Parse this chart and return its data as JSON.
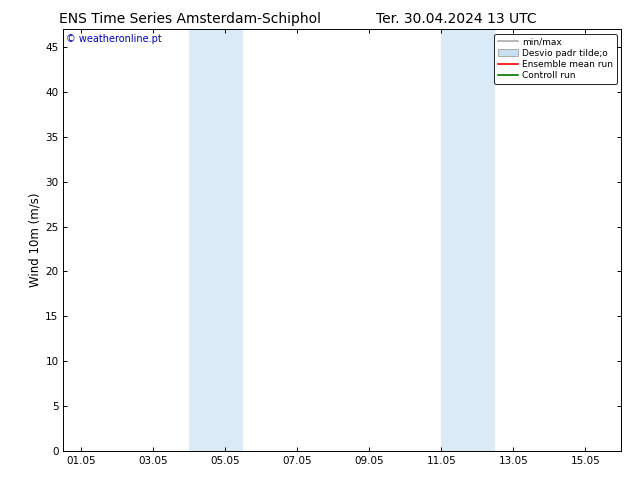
{
  "title_left": "ENS Time Series Amsterdam-Schiphol",
  "title_right": "Ter. 30.04.2024 13 UTC",
  "ylabel": "Wind 10m (m/s)",
  "watermark": "© weatheronline.pt",
  "watermark_color": "#0000bb",
  "xticklabels": [
    "01.05",
    "03.05",
    "05.05",
    "07.05",
    "09.05",
    "11.05",
    "13.05",
    "15.05"
  ],
  "xtick_positions": [
    1,
    3,
    5,
    7,
    9,
    11,
    13,
    15
  ],
  "xlim": [
    0.5,
    16.0
  ],
  "ylim": [
    0,
    47
  ],
  "yticks": [
    0,
    5,
    10,
    15,
    20,
    25,
    30,
    35,
    40,
    45
  ],
  "shade_bands": [
    {
      "xmin": 4.0,
      "xmax": 5.5
    },
    {
      "xmin": 11.0,
      "xmax": 12.5
    }
  ],
  "shade_color": "#daeaf7",
  "bg_color": "#ffffff",
  "plot_bg_color": "#ffffff",
  "legend_entries": [
    {
      "label": "min/max",
      "color": "#aaaaaa",
      "lw": 1.2,
      "type": "line"
    },
    {
      "label": "Desvio padr tilde;o",
      "facecolor": "#c8dff0",
      "edgecolor": "#aaaaaa",
      "type": "fill"
    },
    {
      "label": "Ensemble mean run",
      "color": "#ff0000",
      "lw": 1.2,
      "type": "line"
    },
    {
      "label": "Controll run",
      "color": "#007700",
      "lw": 1.2,
      "type": "line"
    }
  ],
  "title_fontsize": 10,
  "tick_fontsize": 7.5,
  "label_fontsize": 8.5,
  "watermark_fontsize": 7
}
